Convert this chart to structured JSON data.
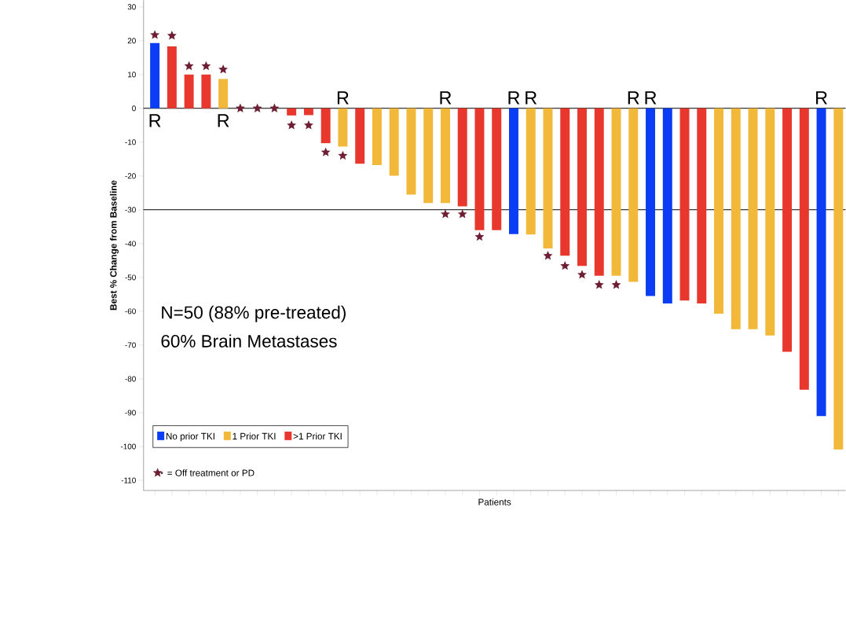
{
  "chart_data": {
    "type": "bar",
    "xlabel": "Patients",
    "ylabel": "Best % Change from Baseline",
    "categories": [
      null,
      null,
      null,
      null,
      null,
      null,
      null,
      null,
      null,
      null,
      null,
      null,
      null,
      null,
      null,
      null,
      null,
      null,
      null,
      null,
      null,
      null,
      null,
      null,
      null,
      null,
      null,
      null,
      null,
      null,
      null,
      null,
      null,
      null,
      null,
      null,
      null,
      null,
      null,
      null,
      null
    ],
    "series": [
      {
        "name": "No prior TKI",
        "color": "#0b3df5",
        "values": [
          19.3,
          null,
          null,
          null,
          null,
          null,
          null,
          null,
          null,
          null,
          null,
          null,
          null,
          null,
          null,
          null,
          null,
          null,
          null,
          null,
          null,
          -37.2,
          null,
          null,
          null,
          null,
          null,
          null,
          null,
          -55.5,
          -57.7,
          null,
          null,
          null,
          null,
          null,
          null,
          null,
          null,
          -91,
          null
        ],
        "value_labels": [
          "R",
          null,
          null,
          null,
          null,
          null,
          null,
          null,
          null,
          null,
          null,
          null,
          null,
          null,
          null,
          null,
          null,
          null,
          null,
          null,
          null,
          "R",
          null,
          null,
          null,
          null,
          null,
          null,
          null,
          "R",
          null,
          null,
          null,
          null,
          null,
          null,
          null,
          null,
          null,
          "R",
          null
        ]
      },
      {
        "name": "1 Prior TKI",
        "color": "#f2b83a",
        "values": [
          null,
          null,
          null,
          null,
          8.7,
          null,
          null,
          null,
          null,
          null,
          null,
          -11.3,
          null,
          -16.8,
          -19.9,
          -25.5,
          -28,
          -28,
          null,
          null,
          null,
          null,
          -37.3,
          -41.4,
          null,
          null,
          null,
          -49.5,
          -51.3,
          null,
          null,
          null,
          null,
          -60.7,
          -65.3,
          -65.3,
          -67.2,
          null,
          null,
          null,
          -100.9
        ],
        "value_labels": [
          null,
          null,
          null,
          null,
          "R",
          null,
          null,
          null,
          null,
          null,
          null,
          "R",
          null,
          null,
          null,
          null,
          null,
          "R",
          null,
          null,
          null,
          null,
          "R",
          null,
          null,
          null,
          null,
          null,
          "R",
          null,
          null,
          null,
          null,
          null,
          null,
          null,
          null,
          null,
          null,
          null,
          null
        ]
      },
      {
        "name": ">1 Prior TKI",
        "color": "#e8382e",
        "values": [
          null,
          18.3,
          10,
          10,
          null,
          null,
          null,
          null,
          -2.1,
          -2,
          -10.3,
          null,
          -16.4,
          null,
          null,
          null,
          null,
          null,
          -29,
          -36,
          -36,
          null,
          null,
          null,
          -43.6,
          -46.6,
          -49.5,
          null,
          null,
          null,
          null,
          -56.8,
          -57.7,
          null,
          null,
          null,
          null,
          -72,
          -83.2,
          null,
          null
        ]
      },
      {
        "name": "= Off treatment or PD",
        "type": "scatter",
        "marker": "star",
        "color": "#6e1f33",
        "values": [
          21.7,
          21.5,
          12.5,
          12.5,
          11.5,
          0,
          0,
          0,
          -5,
          -5,
          -13,
          -14,
          null,
          null,
          null,
          null,
          null,
          -31.3,
          -31.3,
          -38,
          null,
          null,
          null,
          -43.6,
          -46.6,
          -49.2,
          -52.2,
          -52.2,
          null,
          null,
          null,
          null,
          null,
          null,
          null,
          null,
          null,
          null,
          null,
          null,
          null
        ]
      }
    ],
    "ylim": [
      -113,
      32
    ],
    "yticks": [
      -110,
      -100,
      -90,
      -80,
      -70,
      -60,
      -50,
      -40,
      -30,
      -20,
      -10,
      0,
      10,
      20,
      30
    ],
    "ref_lines": [
      {
        "axis": "y",
        "value": 0
      },
      {
        "axis": "y",
        "value": -30
      }
    ],
    "annotations": [
      "N=50 (88% pre-treated)",
      "60% Brain Metastases"
    ],
    "legend": "bottom left",
    "tick_labels": "y"
  }
}
